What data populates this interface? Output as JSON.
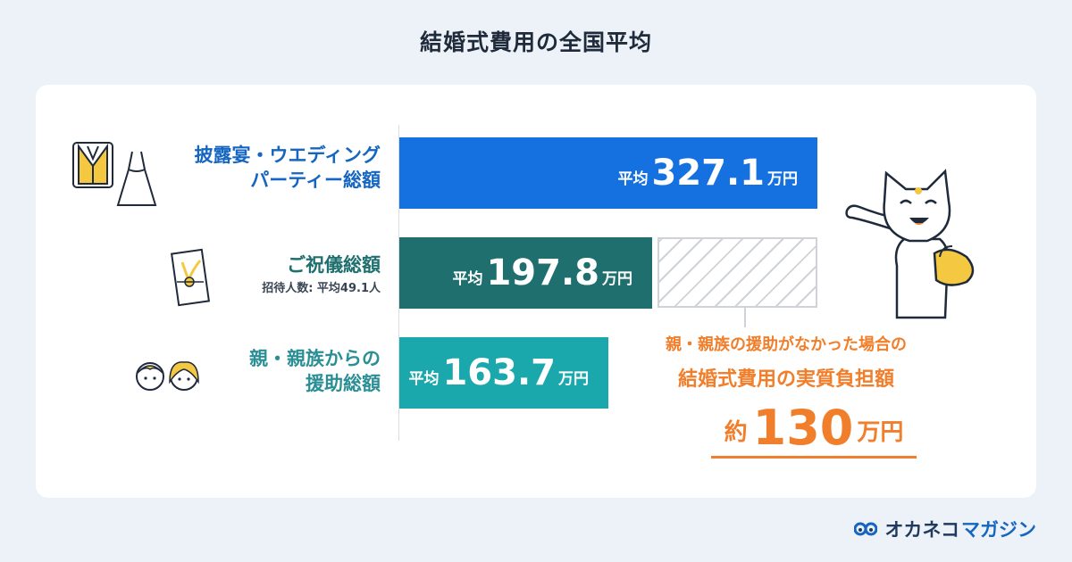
{
  "page": {
    "title": "結婚式費用の全国平均"
  },
  "chart_data": {
    "type": "bar",
    "orientation": "horizontal",
    "categories": [
      "披露宴・ウエディングパーティー総額",
      "ご祝儀総額",
      "親・親族からの援助総額"
    ],
    "values": [
      327.1,
      197.8,
      163.7
    ],
    "unit": "万円",
    "value_prefix": "平均",
    "colors": [
      "#1570e0",
      "#1f6f6f",
      "#1aa8ad"
    ],
    "category_labels": [
      {
        "main": "披露宴・ウエディング",
        "main2": "パーティー総額",
        "sub": ""
      },
      {
        "main": "ご祝儀総額",
        "main2": "",
        "sub": "招待人数: 平均49.1人"
      },
      {
        "main": "親・親族からの",
        "main2": "援助総額",
        "sub": ""
      }
    ],
    "bar_labels": [
      {
        "pre": "平均",
        "num": "327.1",
        "unit": "万円"
      },
      {
        "pre": "平均",
        "num": "197.8",
        "unit": "万円"
      },
      {
        "pre": "平均",
        "num": "163.7",
        "unit": "万円"
      }
    ],
    "annotation": {
      "line1": "親・親族の援助がなかった場合の",
      "line2": "結婚式費用の実質負担額",
      "total_prefix": "約",
      "total_value": 130,
      "total_text": "130",
      "total_unit": "万円",
      "color": "#f07e2a"
    }
  },
  "brand": {
    "part1": "オカネコ",
    "part2": "マガジン"
  }
}
